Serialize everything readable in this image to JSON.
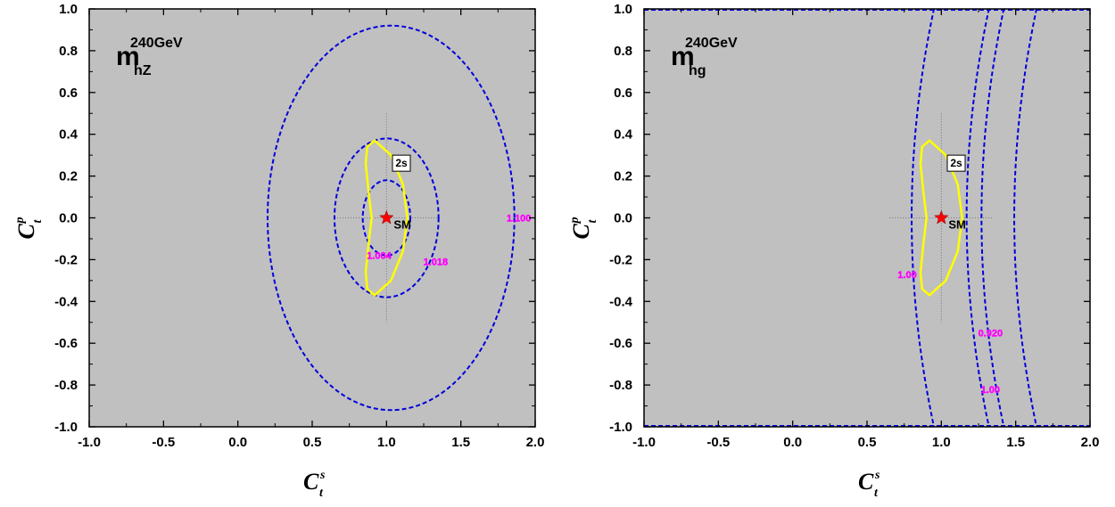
{
  "chart_data": [
    {
      "type": "contour",
      "title": {
        "main": "m",
        "sup": "240GeV",
        "sub": "hZ"
      },
      "xlabel": {
        "main": "C",
        "sup": "s",
        "sub": "t"
      },
      "ylabel": {
        "main": "C",
        "sup": "p",
        "sub": "t"
      },
      "xlim": [
        -1.0,
        2.0
      ],
      "ylim": [
        -1.0,
        1.0
      ],
      "xticks": [
        "-1.0",
        "-0.5",
        "0.0",
        "0.5",
        "1.0",
        "1.5",
        "2.0"
      ],
      "yticks": [
        "1.0",
        "0.8",
        "0.6",
        "0.4",
        "0.2",
        "0.0",
        "-0.2",
        "-0.4",
        "-0.6",
        "-0.8",
        "-1.0"
      ],
      "background": "#c0c0c0",
      "contours": [
        {
          "label": "1.004",
          "shape": "ellipse",
          "center": [
            1.0,
            0.0
          ],
          "rx": 0.16,
          "ry": 0.18,
          "label_pos": [
            0.95,
            -0.18
          ]
        },
        {
          "label": "1.018",
          "shape": "ellipse",
          "center": [
            1.0,
            0.0
          ],
          "rx": 0.35,
          "ry": 0.38,
          "label_pos": [
            1.33,
            -0.21
          ]
        },
        {
          "label": "1.100",
          "shape": "ellipse",
          "center": [
            1.03,
            0.0
          ],
          "rx": 0.83,
          "ry": 0.92,
          "label_pos": [
            1.89,
            0.0
          ]
        }
      ],
      "region": {
        "label": "2s",
        "color": "#ffff00",
        "boundary": [
          [
            0.92,
            0.37
          ],
          [
            0.87,
            0.34
          ],
          [
            0.86,
            0.26
          ],
          [
            0.88,
            0.12
          ],
          [
            0.9,
            0.0
          ],
          [
            0.88,
            -0.12
          ],
          [
            0.86,
            -0.26
          ],
          [
            0.87,
            -0.34
          ],
          [
            0.92,
            -0.37
          ],
          [
            1.03,
            -0.3
          ],
          [
            1.11,
            -0.16
          ],
          [
            1.14,
            0.0
          ],
          [
            1.11,
            0.16
          ],
          [
            1.03,
            0.3
          ]
        ]
      },
      "sm_point": {
        "label": "SM",
        "x": 1.0,
        "y": 0.0
      },
      "colors": {
        "contour": "#0000dd",
        "contour_label": "#ff00ff",
        "star": "#ff0000"
      }
    },
    {
      "type": "contour",
      "title": {
        "main": "m",
        "sup": "240GeV",
        "sub": "hg"
      },
      "xlabel": {
        "main": "C",
        "sup": "s",
        "sub": "t"
      },
      "ylabel": {
        "main": "C",
        "sup": "p",
        "sub": "t"
      },
      "xlim": [
        -1.0,
        2.0
      ],
      "ylim": [
        -1.0,
        1.0
      ],
      "xticks": [
        "-1.0",
        "-0.5",
        "0.0",
        "0.5",
        "1.0",
        "1.5",
        "2.0"
      ],
      "yticks": [
        "1.0",
        "0.8",
        "0.6",
        "0.4",
        "0.2",
        "0.0",
        "-0.2",
        "-0.4",
        "-0.6",
        "-0.8",
        "-1.0"
      ],
      "background": "#c0c0c0",
      "contours": [
        {
          "label": "1.00",
          "shape": "arc",
          "x_at_0": 0.8,
          "x_at_1": 0.95,
          "label_pos": [
            0.77,
            -0.27
          ]
        },
        {
          "label": "0.920",
          "shape": "arc",
          "x_at_0": 1.17,
          "x_at_1": 1.32,
          "label_pos": [
            1.33,
            -0.55
          ]
        },
        {
          "label": "1.00",
          "shape": "arc",
          "x_at_0": 1.27,
          "x_at_1": 1.42,
          "label_pos": [
            1.33,
            -0.82
          ]
        },
        {
          "label": "",
          "shape": "arc",
          "x_at_0": 1.49,
          "x_at_1": 1.64,
          "label_pos": null
        }
      ],
      "region": {
        "label": "2s",
        "color": "#ffff00",
        "boundary": [
          [
            0.92,
            0.37
          ],
          [
            0.87,
            0.34
          ],
          [
            0.86,
            0.26
          ],
          [
            0.88,
            0.12
          ],
          [
            0.9,
            0.0
          ],
          [
            0.88,
            -0.12
          ],
          [
            0.86,
            -0.26
          ],
          [
            0.87,
            -0.34
          ],
          [
            0.92,
            -0.37
          ],
          [
            1.03,
            -0.3
          ],
          [
            1.11,
            -0.16
          ],
          [
            1.14,
            0.0
          ],
          [
            1.11,
            0.16
          ],
          [
            1.03,
            0.3
          ]
        ]
      },
      "sm_point": {
        "label": "SM",
        "x": 1.0,
        "y": 0.0
      },
      "colors": {
        "contour": "#0000dd",
        "contour_label": "#ff00ff",
        "star": "#ff0000"
      }
    }
  ]
}
